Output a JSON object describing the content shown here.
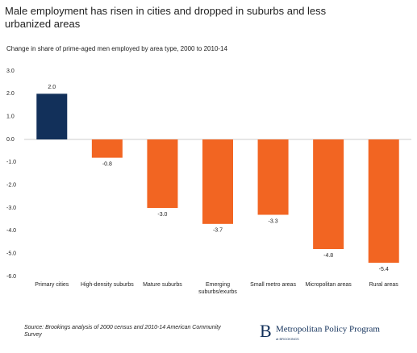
{
  "chart_data": {
    "type": "bar",
    "title": "Male employment has risen in cities and dropped in suburbs and less urbanized areas",
    "subtitle": "Change in share of prime-aged men employed by area type, 2000 to 2010-14",
    "categories": [
      "Primary cities",
      "High-density suburbs",
      "Mature suburbs",
      "Emerging suburbs/exurbs",
      "Small metro areas",
      "Micropolitan areas",
      "Rural areas"
    ],
    "values": [
      2.0,
      -0.8,
      -3.0,
      -3.7,
      -3.3,
      -4.8,
      -5.4
    ],
    "value_labels": [
      "2.0",
      "-0.8",
      "-3.0",
      "-3.7",
      "-3.3",
      "-4.8",
      "-5.4"
    ],
    "colors": [
      "#12305a",
      "#f26522",
      "#f26522",
      "#f26522",
      "#f26522",
      "#f26522",
      "#f26522"
    ],
    "ylim": [
      -6,
      3
    ],
    "yticks": [
      {
        "value": 3,
        "label": "3.0"
      },
      {
        "value": 2,
        "label": "2.0"
      },
      {
        "value": 1,
        "label": "1.0"
      },
      {
        "value": 0,
        "label": "0.0"
      },
      {
        "value": -1,
        "label": "-1.0"
      },
      {
        "value": -2,
        "label": "-2.0"
      },
      {
        "value": -3,
        "label": "-3.0"
      },
      {
        "value": -4,
        "label": "-4.0"
      },
      {
        "value": -5,
        "label": "-5.0"
      },
      {
        "value": -6,
        "label": "-6.0"
      }
    ],
    "source": "Source: Brookings analysis of 2000 census and 2010-14 American Community Survey",
    "logo": {
      "letter": "B",
      "name": "Metropolitan Policy Program",
      "sub": "at BROOKINGS"
    }
  }
}
